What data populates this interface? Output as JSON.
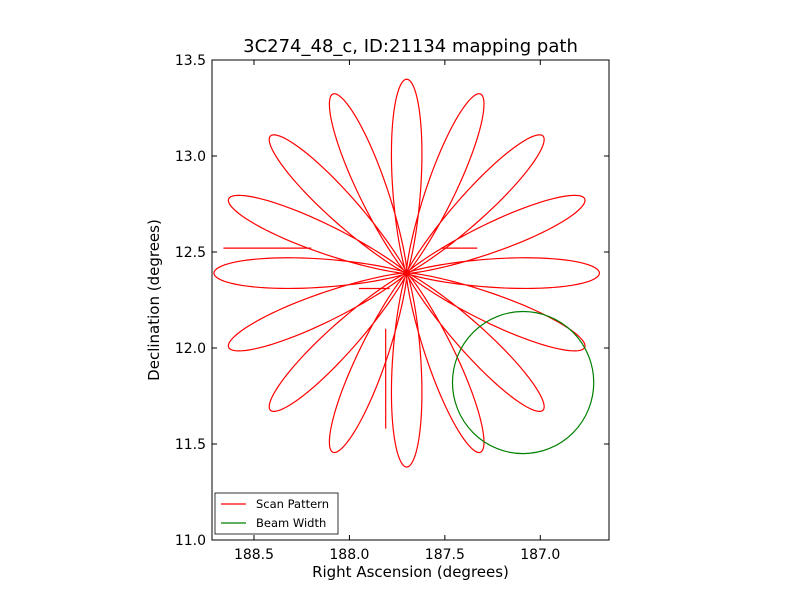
{
  "chart_data": {
    "type": "line",
    "title": "3C274_48_c, ID:21134 mapping path",
    "xlabel": "Right Ascension (degrees)",
    "ylabel": "Declination (degrees)",
    "xlim": [
      188.72,
      186.64
    ],
    "ylim": [
      11.0,
      13.5
    ],
    "x_inverted": true,
    "xticks": [
      188.5,
      188.0,
      187.5,
      187.0
    ],
    "xtick_labels": [
      "188.5",
      "188.0",
      "187.5",
      "187.0"
    ],
    "yticks": [
      11.0,
      11.5,
      12.0,
      12.5,
      13.0,
      13.5
    ],
    "ytick_labels": [
      "11.0",
      "11.5",
      "12.0",
      "12.5",
      "13.0",
      "13.5"
    ],
    "grid": false,
    "legend_position": "lower-left",
    "series": [
      {
        "name": "Scan Pattern",
        "color": "#ff0000",
        "kind": "rosette-scan",
        "center": [
          187.7,
          12.39
        ],
        "petals": 16,
        "petal_length_deg": 1.01,
        "petal_half_width_deg": 0.095,
        "start_angle_deg": 90,
        "offsets": [
          {
            "ra": 187.81,
            "dec_from": 12.1,
            "dec_to": 11.58
          },
          {
            "ra_from": 187.95,
            "ra_to": 187.79,
            "dec": 12.31
          },
          {
            "ra_from": 187.33,
            "ra_to": 187.52,
            "dec": 12.52
          },
          {
            "ra_from": 188.66,
            "ra_to": 188.2,
            "dec": 12.52
          }
        ]
      },
      {
        "name": "Beam Width",
        "color": "#008000",
        "kind": "circle",
        "center": [
          187.09,
          11.82
        ],
        "radius_deg": 0.37
      }
    ],
    "legend": [
      {
        "label": "Scan Pattern",
        "color": "#ff0000"
      },
      {
        "label": "Beam Width",
        "color": "#008000"
      }
    ]
  }
}
